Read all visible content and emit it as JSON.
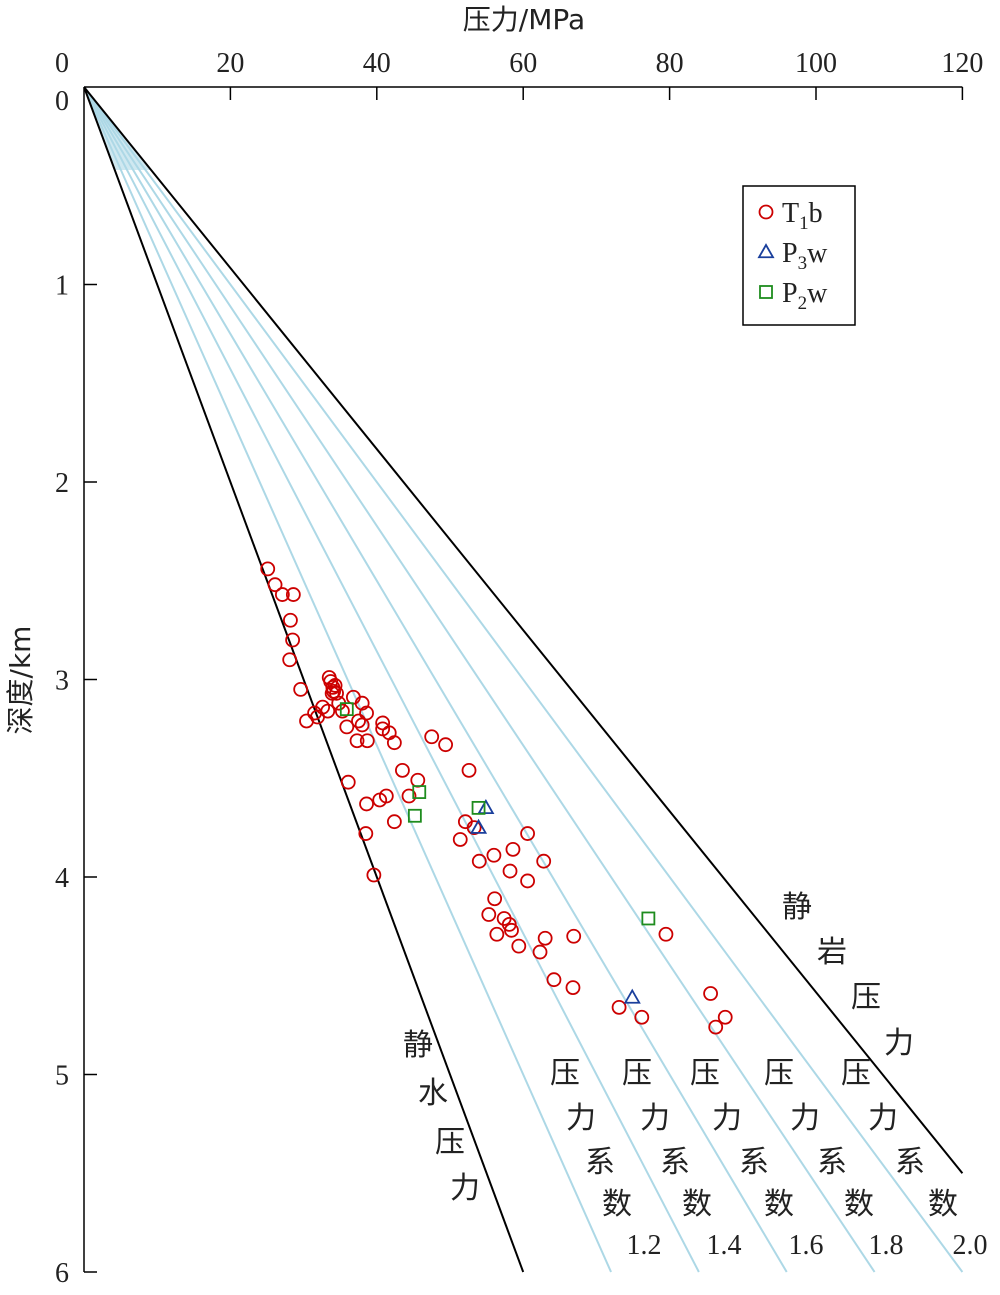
{
  "chart_data": {
    "type": "scatter",
    "xlabel": "压力/MPa",
    "ylabel": "深度/km",
    "xlim": [
      0,
      120
    ],
    "ylim": [
      0,
      6
    ],
    "x_ticks": [
      "0",
      "20",
      "40",
      "60",
      "80",
      "100",
      "120"
    ],
    "y_ticks": [
      "1",
      "2",
      "3",
      "4",
      "5",
      "6"
    ],
    "x_axis_position": "top",
    "y_axis_inverted": true,
    "legend_position": "top-right",
    "colors": {
      "hydrostatic_line": "#000000",
      "lithostatic_line": "#000000",
      "coefficient_lines": "#add8e6",
      "shaded_zone": "#cfe8f0",
      "T1b": "#cc0000",
      "P3w": "#1a3f9c",
      "P2w": "#1e8c1e"
    },
    "reference_lines": [
      {
        "name": "静水压力",
        "pressure_at_6km": 60
      },
      {
        "name": "静岩压力",
        "pressure_at_5.5km": 120
      }
    ],
    "coefficient_lines": [
      {
        "coefficient": "1.2",
        "pressure_at_6km": 72
      },
      {
        "coefficient": "1.4",
        "pressure_at_6km": 84
      },
      {
        "coefficient": "1.6",
        "pressure_at_6km": 96
      },
      {
        "coefficient": "1.8",
        "pressure_at_6km": 108
      },
      {
        "coefficient": "2.0",
        "pressure_at_6km": 120
      }
    ],
    "annotations": {
      "hydrostatic": [
        "静",
        "水",
        "压",
        "力"
      ],
      "lithostatic": [
        "静",
        "岩",
        "压",
        "力"
      ],
      "coefficient_label": [
        "压",
        "力",
        "系",
        "数"
      ]
    },
    "series": [
      {
        "name": "T1b",
        "marker": "circle",
        "points": [
          [
            25.1,
            2.44
          ],
          [
            26.1,
            2.52
          ],
          [
            27.1,
            2.57
          ],
          [
            28.6,
            2.57
          ],
          [
            28.2,
            2.7
          ],
          [
            28.5,
            2.8
          ],
          [
            28.1,
            2.9
          ],
          [
            29.6,
            3.05
          ],
          [
            33.5,
            2.99
          ],
          [
            33.7,
            3.01
          ],
          [
            34.0,
            3.04
          ],
          [
            34.1,
            3.06
          ],
          [
            33.9,
            3.07
          ],
          [
            34.3,
            3.03
          ],
          [
            34.5,
            3.07
          ],
          [
            36.8,
            3.09
          ],
          [
            38.0,
            3.12
          ],
          [
            34.8,
            3.12
          ],
          [
            32.6,
            3.14
          ],
          [
            33.3,
            3.16
          ],
          [
            31.5,
            3.17
          ],
          [
            31.9,
            3.19
          ],
          [
            35.3,
            3.16
          ],
          [
            38.6,
            3.17
          ],
          [
            30.4,
            3.21
          ],
          [
            37.5,
            3.21
          ],
          [
            38.0,
            3.23
          ],
          [
            35.9,
            3.24
          ],
          [
            37.3,
            3.31
          ],
          [
            38.7,
            3.31
          ],
          [
            40.8,
            3.22
          ],
          [
            40.8,
            3.25
          ],
          [
            41.7,
            3.27
          ],
          [
            42.4,
            3.32
          ],
          [
            47.5,
            3.29
          ],
          [
            49.4,
            3.33
          ],
          [
            43.5,
            3.46
          ],
          [
            52.6,
            3.46
          ],
          [
            36.1,
            3.52
          ],
          [
            45.6,
            3.51
          ],
          [
            44.4,
            3.59
          ],
          [
            40.4,
            3.61
          ],
          [
            41.3,
            3.59
          ],
          [
            38.6,
            3.63
          ],
          [
            42.4,
            3.72
          ],
          [
            52.1,
            3.72
          ],
          [
            53.3,
            3.75
          ],
          [
            38.5,
            3.78
          ],
          [
            51.4,
            3.81
          ],
          [
            60.6,
            3.78
          ],
          [
            58.6,
            3.86
          ],
          [
            56.0,
            3.89
          ],
          [
            54.0,
            3.92
          ],
          [
            62.8,
            3.92
          ],
          [
            58.2,
            3.97
          ],
          [
            60.6,
            4.02
          ],
          [
            39.6,
            3.99
          ],
          [
            56.1,
            4.11
          ],
          [
            55.3,
            4.19
          ],
          [
            57.4,
            4.21
          ],
          [
            58.1,
            4.24
          ],
          [
            58.4,
            4.27
          ],
          [
            56.4,
            4.29
          ],
          [
            63.0,
            4.31
          ],
          [
            66.9,
            4.3
          ],
          [
            79.5,
            4.29
          ],
          [
            59.4,
            4.35
          ],
          [
            62.3,
            4.38
          ],
          [
            64.2,
            4.52
          ],
          [
            66.8,
            4.56
          ],
          [
            73.1,
            4.66
          ],
          [
            76.2,
            4.71
          ],
          [
            85.6,
            4.59
          ],
          [
            87.6,
            4.71
          ],
          [
            86.3,
            4.76
          ]
        ]
      },
      {
        "name": "P3w",
        "marker": "triangle",
        "points": [
          [
            54.9,
            3.65
          ],
          [
            53.9,
            3.75
          ],
          [
            74.9,
            4.61
          ]
        ]
      },
      {
        "name": "P2w",
        "marker": "square",
        "points": [
          [
            35.9,
            3.15
          ],
          [
            45.8,
            3.57
          ],
          [
            45.2,
            3.69
          ],
          [
            53.9,
            3.65
          ],
          [
            77.1,
            4.21
          ]
        ]
      }
    ]
  }
}
